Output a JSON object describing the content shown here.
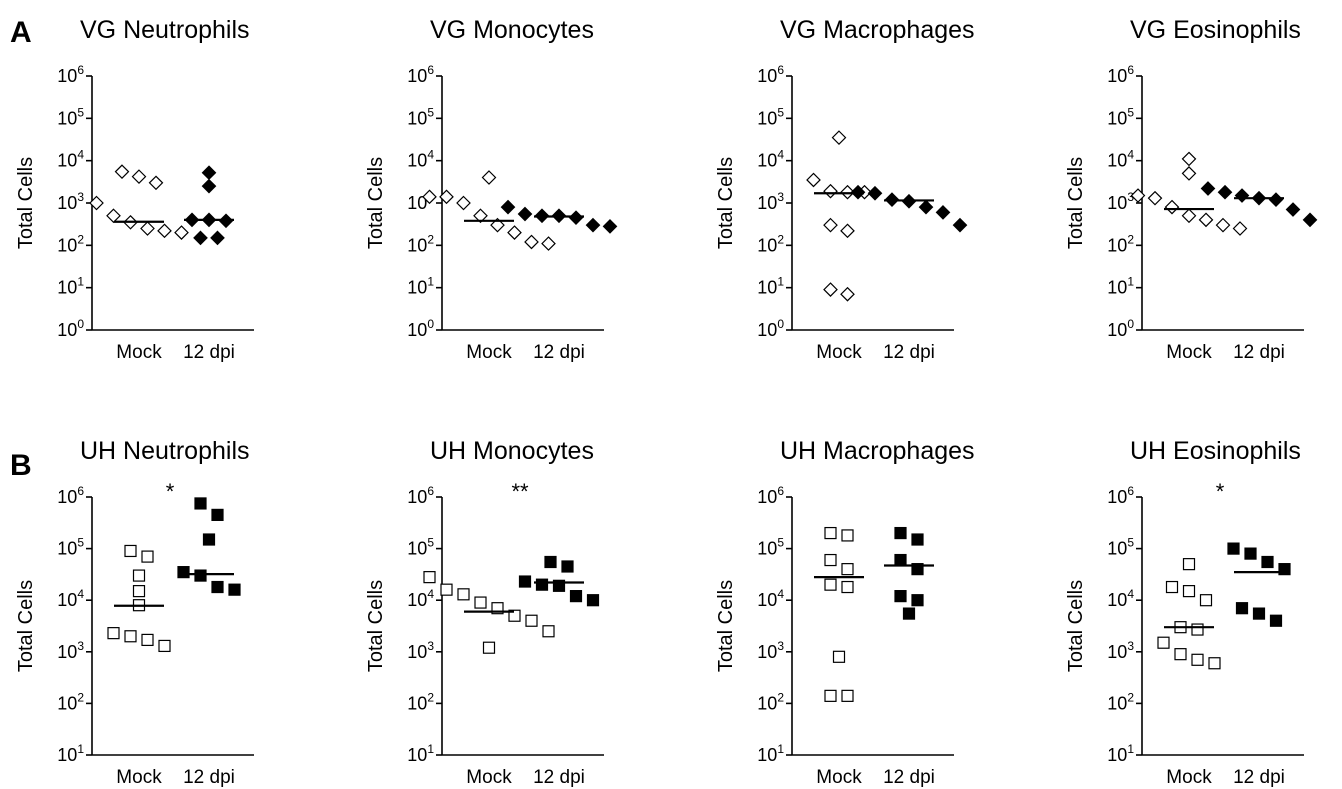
{
  "panel_labels": [
    "A",
    "B"
  ],
  "chart_data": [
    {
      "type": "scatter",
      "panel": "A",
      "title": "VG Neutrophils",
      "ylabel": "Total Cells",
      "yscale": "log",
      "ylim": [
        1,
        1000000
      ],
      "categories": [
        "Mock",
        "12 dpi"
      ],
      "marker": "diamond",
      "significance": "",
      "series": [
        {
          "category": "Mock",
          "filled": false,
          "values": [
            5500,
            3000,
            4200,
            1000,
            500,
            350,
            250,
            200,
            220
          ]
        },
        {
          "category": "12 dpi",
          "filled": true,
          "values": [
            5200,
            2500,
            400,
            380,
            400,
            150,
            150
          ]
        }
      ],
      "medians": [
        360,
        400
      ]
    },
    {
      "type": "scatter",
      "panel": "A",
      "title": "VG Monocytes",
      "ylabel": "Total Cells",
      "yscale": "log",
      "ylim": [
        1,
        1000000
      ],
      "categories": [
        "Mock",
        "12 dpi"
      ],
      "marker": "diamond",
      "significance": "",
      "series": [
        {
          "category": "Mock",
          "filled": false,
          "values": [
            4000,
            1400,
            1400,
            1000,
            500,
            300,
            200,
            120,
            110
          ]
        },
        {
          "category": "12 dpi",
          "filled": true,
          "values": [
            800,
            550,
            500,
            500,
            450,
            300,
            280
          ]
        }
      ],
      "medians": [
        380,
        480
      ]
    },
    {
      "type": "scatter",
      "panel": "A",
      "title": "VG Macrophages",
      "ylabel": "Total Cells",
      "yscale": "log",
      "ylim": [
        1,
        1000000
      ],
      "categories": [
        "Mock",
        "12 dpi"
      ],
      "marker": "diamond",
      "significance": "",
      "series": [
        {
          "category": "Mock",
          "filled": false,
          "values": [
            35000,
            3500,
            1900,
            1800,
            1800,
            300,
            220,
            9,
            7
          ]
        },
        {
          "category": "12 dpi",
          "filled": true,
          "values": [
            1800,
            1700,
            1200,
            1100,
            800,
            600,
            300
          ]
        }
      ],
      "medians": [
        1700,
        1150
      ]
    },
    {
      "type": "scatter",
      "panel": "A",
      "title": "VG Eosinophils",
      "ylabel": "Total Cells",
      "yscale": "log",
      "ylim": [
        1,
        1000000
      ],
      "categories": [
        "Mock",
        "12 dpi"
      ],
      "marker": "diamond",
      "significance": "",
      "series": [
        {
          "category": "Mock",
          "filled": false,
          "values": [
            11000,
            5000,
            1500,
            1300,
            800,
            500,
            400,
            300,
            250
          ]
        },
        {
          "category": "12 dpi",
          "filled": true,
          "values": [
            2200,
            1800,
            1500,
            1200,
            1300,
            700,
            400
          ]
        }
      ],
      "medians": [
        720,
        1300
      ]
    },
    {
      "type": "scatter",
      "panel": "B",
      "title": "UH Neutrophils",
      "ylabel": "Total Cells",
      "yscale": "log",
      "ylim": [
        10,
        1000000
      ],
      "categories": [
        "Mock",
        "12 dpi"
      ],
      "marker": "square",
      "significance": "*",
      "series": [
        {
          "category": "Mock",
          "filled": false,
          "values": [
            90000,
            70000,
            30000,
            15000,
            8000,
            2300,
            2000,
            1700,
            1300
          ]
        },
        {
          "category": "12 dpi",
          "filled": true,
          "values": [
            750000,
            450000,
            150000,
            35000,
            30000,
            18000,
            16000
          ]
        }
      ],
      "medians": [
        7800,
        32000
      ]
    },
    {
      "type": "scatter",
      "panel": "B",
      "title": "UH Monocytes",
      "ylabel": "Total Cells",
      "yscale": "log",
      "ylim": [
        10,
        1000000
      ],
      "categories": [
        "Mock",
        "12 dpi"
      ],
      "marker": "square",
      "significance": "**",
      "series": [
        {
          "category": "Mock",
          "filled": false,
          "values": [
            28000,
            16000,
            13000,
            9000,
            7000,
            5000,
            4000,
            2500,
            1200
          ]
        },
        {
          "category": "12 dpi",
          "filled": true,
          "values": [
            55000,
            45000,
            23000,
            20000,
            19000,
            12000,
            10000
          ]
        }
      ],
      "medians": [
        6000,
        22000
      ]
    },
    {
      "type": "scatter",
      "panel": "B",
      "title": "UH Macrophages",
      "ylabel": "Total Cells",
      "yscale": "log",
      "ylim": [
        10,
        1000000
      ],
      "categories": [
        "Mock",
        "12 dpi"
      ],
      "marker": "square",
      "significance": "",
      "series": [
        {
          "category": "Mock",
          "filled": false,
          "values": [
            200000,
            180000,
            60000,
            40000,
            20000,
            18000,
            800,
            140,
            140
          ]
        },
        {
          "category": "12 dpi",
          "filled": true,
          "values": [
            200000,
            150000,
            60000,
            40000,
            12000,
            10000,
            5500
          ]
        }
      ],
      "medians": [
        28000,
        47000
      ]
    },
    {
      "type": "scatter",
      "panel": "B",
      "title": "UH Eosinophils",
      "ylabel": "Total Cells",
      "yscale": "log",
      "ylim": [
        10,
        1000000
      ],
      "categories": [
        "Mock",
        "12 dpi"
      ],
      "marker": "square",
      "significance": "*",
      "series": [
        {
          "category": "Mock",
          "filled": false,
          "values": [
            50000,
            18000,
            15000,
            10000,
            3000,
            2700,
            1500,
            900,
            700,
            600
          ]
        },
        {
          "category": "12 dpi",
          "filled": true,
          "values": [
            100000,
            80000,
            55000,
            40000,
            7000,
            5500,
            4000
          ]
        }
      ],
      "medians": [
        3000,
        35000
      ]
    }
  ]
}
